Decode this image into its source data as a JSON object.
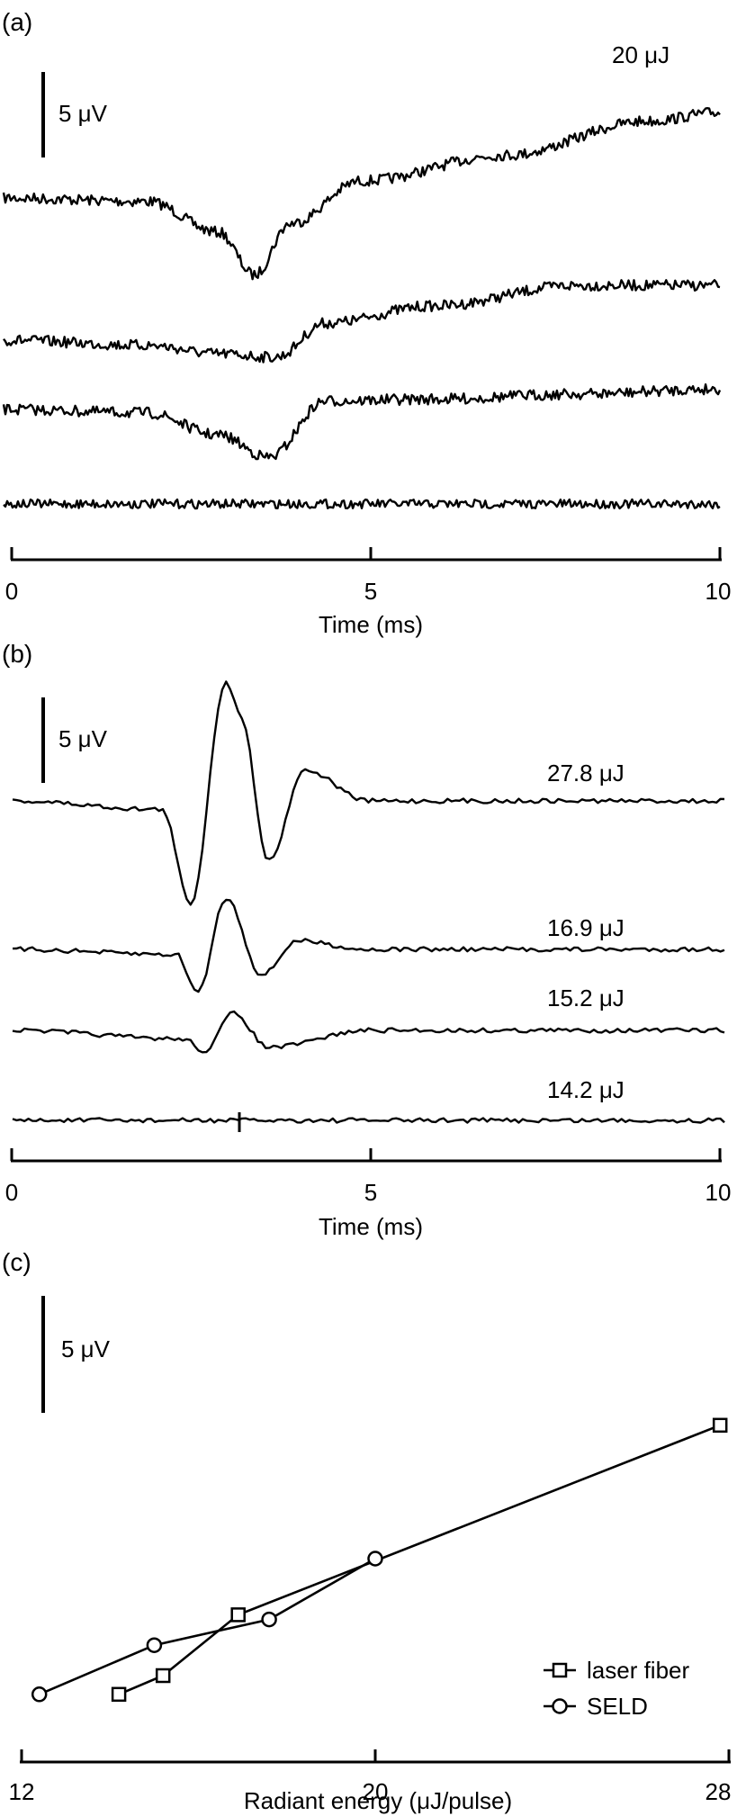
{
  "panels": {
    "a": {
      "label": "(a)",
      "scalebar_label": "5 μV",
      "energy_label": "20 μJ",
      "xlabel": "Time (ms)",
      "xticks": [
        "0",
        "5",
        "10"
      ]
    },
    "b": {
      "label": "(b)",
      "scalebar_label": "5 μV",
      "trace_labels": [
        "27.8 μJ",
        "16.9 μJ",
        "15.2 μJ",
        "14.2 μJ"
      ],
      "xlabel": "Time (ms)",
      "xticks": [
        "0",
        "5",
        "10"
      ]
    },
    "c": {
      "label": "(c)",
      "scalebar_label": "5 μV",
      "xlabel": "Radiant energy (μJ/pulse)",
      "xticks": [
        "12",
        "20",
        "28"
      ],
      "legend": [
        "laser fiber",
        "SELD"
      ]
    }
  },
  "chart_data": [
    {
      "type": "line",
      "panel": "a",
      "xlabel": "Time (ms)",
      "xlim": [
        0,
        10
      ],
      "scale_bar_uV": 5,
      "series": [
        {
          "name": "20 μJ",
          "x": [
            0,
            2,
            3,
            3.5,
            4,
            5,
            7,
            9,
            10
          ],
          "y": [
            0,
            -0.2,
            -2.0,
            -4.5,
            -1.5,
            1.0,
            2.5,
            4.5,
            5.0
          ]
        },
        {
          "values_x": [
            0,
            2,
            3,
            3.8,
            4.5,
            6,
            8,
            10
          ],
          "x": [
            0,
            2,
            3,
            3.8,
            4.5,
            6,
            8,
            10
          ],
          "y": [
            0,
            -0.3,
            -0.8,
            -1.0,
            1.0,
            2.0,
            3.2,
            3.2
          ]
        },
        {
          "x": [
            0,
            2,
            3,
            3.7,
            4.5,
            6,
            8,
            10
          ],
          "y": [
            0,
            -0.2,
            -1.5,
            -2.8,
            0.5,
            0.6,
            0.9,
            1.2
          ]
        },
        {
          "x": [
            0,
            5,
            10
          ],
          "y": [
            0,
            0,
            0
          ]
        }
      ]
    },
    {
      "type": "line",
      "panel": "b",
      "xlabel": "Time (ms)",
      "xlim": [
        0,
        10
      ],
      "scale_bar_uV": 5,
      "series": [
        {
          "name": "27.8 μJ",
          "x": [
            0,
            2.1,
            2.5,
            3.0,
            3.2,
            3.6,
            4.1,
            5,
            10
          ],
          "y": [
            0,
            -0.5,
            -6.0,
            7.0,
            5.0,
            -3.5,
            1.8,
            0,
            0
          ]
        },
        {
          "name": "16.9 μJ",
          "x": [
            0,
            2.3,
            2.6,
            3.0,
            3.5,
            4.0,
            5,
            10
          ],
          "y": [
            0,
            -0.3,
            -2.5,
            3.0,
            -1.5,
            0.5,
            0,
            0
          ]
        },
        {
          "name": "15.2 μJ",
          "x": [
            0,
            2.4,
            2.7,
            3.1,
            3.6,
            5,
            10
          ],
          "y": [
            0,
            -0.5,
            -1.2,
            1.0,
            -1.0,
            0,
            0
          ]
        },
        {
          "name": "14.2 μJ",
          "x": [
            0,
            5,
            10
          ],
          "y": [
            0,
            0,
            0
          ]
        }
      ]
    },
    {
      "type": "line",
      "panel": "c",
      "xlabel": "Radiant energy (μJ/pulse)",
      "xlim": [
        12,
        28
      ],
      "xticks": [
        12,
        20,
        28
      ],
      "scale_bar_uV": 5,
      "series": [
        {
          "name": "laser fiber",
          "marker": "square",
          "x": [
            14.2,
            15.2,
            16.9,
            27.8
          ],
          "y": [
            0.2,
            1.0,
            3.6,
            11.7
          ]
        },
        {
          "name": "SELD",
          "marker": "circle",
          "x": [
            12.4,
            15.0,
            17.6,
            20.0
          ],
          "y": [
            0.2,
            2.3,
            3.4,
            6.0
          ]
        }
      ]
    }
  ]
}
